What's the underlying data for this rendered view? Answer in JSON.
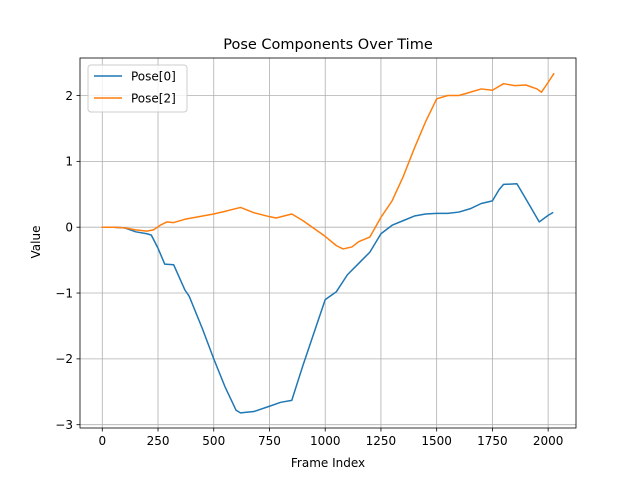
{
  "chart_data": {
    "type": "line",
    "title": "Pose Components Over Time",
    "xlabel": "Frame Index",
    "ylabel": "Value",
    "xlim": [
      -100,
      2125
    ],
    "ylim": [
      -3.05,
      2.57
    ],
    "xticks": [
      0,
      250,
      500,
      750,
      1000,
      1250,
      1500,
      1750,
      2000
    ],
    "xtick_labels": [
      "0",
      "250",
      "500",
      "750",
      "1000",
      "1250",
      "1500",
      "1750",
      "2000"
    ],
    "yticks": [
      -3,
      -2,
      -1,
      0,
      1,
      2
    ],
    "ytick_labels": [
      "−3",
      "−2",
      "−1",
      "0",
      "1",
      "2"
    ],
    "grid": true,
    "legend_position": "upper-left",
    "series": [
      {
        "name": "Pose[0]",
        "color": "#1f77b4",
        "points": [
          [
            0,
            0.0
          ],
          [
            50,
            0.0
          ],
          [
            100,
            -0.01
          ],
          [
            150,
            -0.07
          ],
          [
            200,
            -0.1
          ],
          [
            220,
            -0.12
          ],
          [
            250,
            -0.32
          ],
          [
            280,
            -0.56
          ],
          [
            320,
            -0.57
          ],
          [
            370,
            -0.95
          ],
          [
            390,
            -1.05
          ],
          [
            450,
            -1.55
          ],
          [
            500,
            -2.0
          ],
          [
            550,
            -2.42
          ],
          [
            600,
            -2.78
          ],
          [
            620,
            -2.82
          ],
          [
            680,
            -2.8
          ],
          [
            750,
            -2.72
          ],
          [
            800,
            -2.66
          ],
          [
            850,
            -2.63
          ],
          [
            900,
            -2.1
          ],
          [
            950,
            -1.6
          ],
          [
            1000,
            -1.1
          ],
          [
            1050,
            -0.98
          ],
          [
            1100,
            -0.72
          ],
          [
            1150,
            -0.55
          ],
          [
            1200,
            -0.38
          ],
          [
            1250,
            -0.1
          ],
          [
            1300,
            0.03
          ],
          [
            1350,
            0.1
          ],
          [
            1400,
            0.17
          ],
          [
            1450,
            0.2
          ],
          [
            1500,
            0.21
          ],
          [
            1550,
            0.21
          ],
          [
            1600,
            0.23
          ],
          [
            1650,
            0.28
          ],
          [
            1700,
            0.36
          ],
          [
            1750,
            0.4
          ],
          [
            1780,
            0.57
          ],
          [
            1800,
            0.65
          ],
          [
            1860,
            0.66
          ],
          [
            1900,
            0.43
          ],
          [
            1960,
            0.08
          ],
          [
            2000,
            0.18
          ],
          [
            2020,
            0.22
          ]
        ]
      },
      {
        "name": "Pose[2]",
        "color": "#ff7f0e",
        "points": [
          [
            0,
            0.0
          ],
          [
            50,
            0.0
          ],
          [
            100,
            -0.01
          ],
          [
            150,
            -0.04
          ],
          [
            200,
            -0.06
          ],
          [
            230,
            -0.04
          ],
          [
            260,
            0.03
          ],
          [
            290,
            0.08
          ],
          [
            320,
            0.07
          ],
          [
            370,
            0.12
          ],
          [
            450,
            0.17
          ],
          [
            500,
            0.2
          ],
          [
            550,
            0.24
          ],
          [
            620,
            0.3
          ],
          [
            680,
            0.22
          ],
          [
            750,
            0.16
          ],
          [
            780,
            0.14
          ],
          [
            850,
            0.2
          ],
          [
            900,
            0.1
          ],
          [
            950,
            -0.02
          ],
          [
            1000,
            -0.14
          ],
          [
            1050,
            -0.28
          ],
          [
            1080,
            -0.33
          ],
          [
            1120,
            -0.3
          ],
          [
            1150,
            -0.22
          ],
          [
            1200,
            -0.15
          ],
          [
            1250,
            0.15
          ],
          [
            1300,
            0.4
          ],
          [
            1350,
            0.77
          ],
          [
            1400,
            1.2
          ],
          [
            1450,
            1.6
          ],
          [
            1500,
            1.95
          ],
          [
            1550,
            2.0
          ],
          [
            1600,
            2.0
          ],
          [
            1650,
            2.05
          ],
          [
            1700,
            2.1
          ],
          [
            1750,
            2.08
          ],
          [
            1800,
            2.18
          ],
          [
            1850,
            2.15
          ],
          [
            1900,
            2.16
          ],
          [
            1950,
            2.1
          ],
          [
            1970,
            2.05
          ],
          [
            2000,
            2.2
          ],
          [
            2025,
            2.33
          ]
        ]
      }
    ]
  }
}
